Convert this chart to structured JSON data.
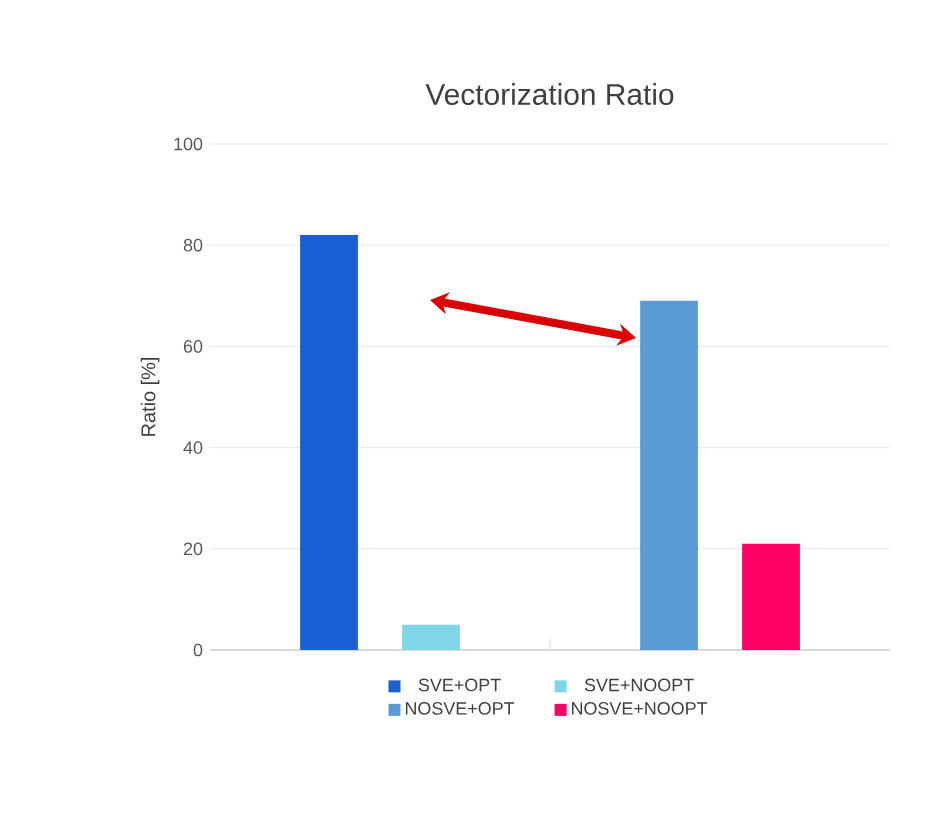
{
  "chart_data": {
    "type": "bar",
    "title": "Vectorization Ratio",
    "ylabel": "Ratio [%]",
    "categories": [
      null,
      null
    ],
    "series": [
      {
        "name": "SVE+OPT",
        "color": "#1a5fd6",
        "values": [
          82,
          null
        ]
      },
      {
        "name": "SVE+NOOPT",
        "color": "#7fd6e6",
        "values": [
          5,
          null
        ]
      },
      {
        "name": "NOSVE+OPT",
        "color": "#5b9bd5",
        "values": [
          null,
          69
        ]
      },
      {
        "name": "NOSVE+NOOPT",
        "color": "#ff0066",
        "values": [
          null,
          21
        ]
      }
    ],
    "ylim": [
      0,
      100
    ],
    "yticks": [
      0,
      20,
      40,
      60,
      80,
      100
    ],
    "grid": "y",
    "legend": "bottom"
  }
}
